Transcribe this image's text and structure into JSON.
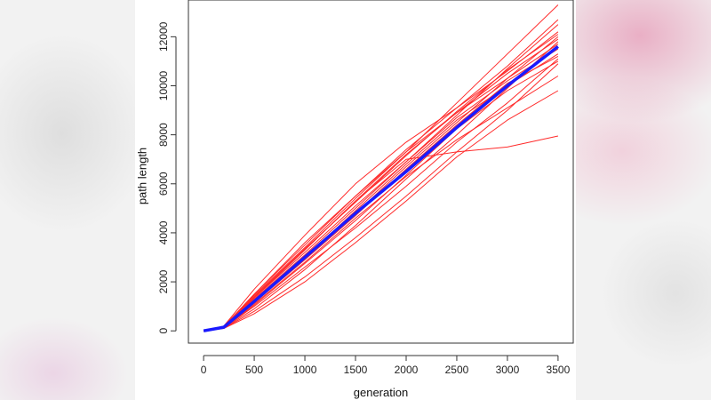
{
  "chart_data": {
    "type": "line",
    "title": "",
    "xlabel": "generation",
    "ylabel": "path length",
    "xlim": [
      -150,
      3650
    ],
    "ylim": [
      -500,
      13500
    ],
    "xticks": [
      0,
      500,
      1000,
      1500,
      2000,
      2500,
      3000,
      3500
    ],
    "yticks": [
      0,
      2000,
      4000,
      6000,
      8000,
      10000,
      12000
    ],
    "grid": false,
    "legend": "none",
    "colors": {
      "runs": "#ff2a2a",
      "mean": "#1a1aff"
    },
    "series": [
      {
        "role": "run",
        "x": [
          0,
          200,
          500,
          1000,
          1500,
          2000,
          2500,
          3000,
          3500
        ],
        "y": [
          0,
          180,
          1500,
          3500,
          5500,
          7400,
          9100,
          10600,
          12200
        ]
      },
      {
        "role": "run",
        "x": [
          0,
          200,
          500,
          1000,
          1500,
          2000,
          2500,
          3000,
          3500
        ],
        "y": [
          0,
          160,
          1400,
          3300,
          5300,
          7200,
          8900,
          10500,
          11900
        ]
      },
      {
        "role": "run",
        "x": [
          0,
          200,
          500,
          1000,
          1500,
          2000,
          2500,
          3000,
          3500
        ],
        "y": [
          0,
          170,
          1300,
          3100,
          5000,
          6900,
          8800,
          10700,
          12500
        ]
      },
      {
        "role": "run",
        "x": [
          0,
          200,
          500,
          1000,
          1500,
          2000,
          2500,
          3000,
          3500
        ],
        "y": [
          0,
          190,
          1450,
          3400,
          5400,
          7300,
          9300,
          11300,
          13300
        ]
      },
      {
        "role": "run",
        "x": [
          0,
          200,
          500,
          1000,
          1500,
          2000,
          2500,
          3000,
          3500
        ],
        "y": [
          0,
          150,
          1200,
          3000,
          4800,
          6700,
          8500,
          10300,
          12000
        ]
      },
      {
        "role": "run",
        "x": [
          0,
          200,
          500,
          1000,
          1500,
          2000,
          2500,
          3000,
          3500
        ],
        "y": [
          0,
          120,
          900,
          2500,
          4300,
          6200,
          8000,
          9900,
          11800
        ]
      },
      {
        "role": "run",
        "x": [
          0,
          200,
          500,
          1000,
          1500,
          2000,
          2500,
          3000,
          3500
        ],
        "y": [
          0,
          110,
          800,
          2200,
          3800,
          5500,
          7300,
          9000,
          10900
        ]
      },
      {
        "role": "run",
        "x": [
          0,
          200,
          500,
          1000,
          1500,
          2000,
          2500,
          3000,
          3500
        ],
        "y": [
          0,
          140,
          1100,
          2800,
          4600,
          6300,
          7800,
          9100,
          10400
        ]
      },
      {
        "role": "run",
        "x": [
          0,
          200,
          500,
          1000,
          1500,
          2000,
          2500,
          3000,
          3500
        ],
        "y": [
          0,
          130,
          1000,
          2600,
          4200,
          5900,
          7700,
          9300,
          11100
        ]
      },
      {
        "role": "run",
        "x": [
          0,
          200,
          500,
          1000,
          1500,
          2000,
          2500,
          3000,
          3500
        ],
        "y": [
          0,
          170,
          1350,
          3300,
          5300,
          7000,
          7300,
          7500,
          7950
        ]
      },
      {
        "role": "run",
        "x": [
          0,
          200,
          500,
          1000,
          1500,
          2000,
          2500,
          3000,
          3500
        ],
        "y": [
          0,
          100,
          700,
          2000,
          3600,
          5300,
          7100,
          8600,
          9800
        ]
      },
      {
        "role": "run",
        "x": [
          0,
          200,
          500,
          1000,
          1500,
          2000,
          2500,
          3000,
          3500
        ],
        "y": [
          0,
          200,
          1700,
          3900,
          6000,
          7700,
          9100,
          10800,
          12700
        ]
      },
      {
        "role": "run",
        "x": [
          0,
          200,
          500,
          1000,
          1500,
          2000,
          2500,
          3000,
          3500
        ],
        "y": [
          0,
          160,
          1350,
          3200,
          5100,
          6900,
          8700,
          10200,
          11500
        ]
      },
      {
        "role": "run",
        "x": [
          0,
          200,
          500,
          1000,
          1500,
          2000,
          2500,
          3000,
          3500
        ],
        "y": [
          0,
          150,
          1250,
          3000,
          4900,
          6800,
          8600,
          10000,
          11300
        ]
      },
      {
        "role": "run",
        "x": [
          0,
          200,
          500,
          1000,
          1500,
          2000,
          2500,
          3000,
          3500
        ],
        "y": [
          0,
          180,
          1500,
          3600,
          5500,
          7300,
          8900,
          10300,
          11700
        ]
      },
      {
        "role": "run",
        "x": [
          0,
          200,
          500,
          1000,
          1500,
          2000,
          2500,
          3000,
          3500
        ],
        "y": [
          0,
          140,
          1150,
          2900,
          4700,
          6600,
          8400,
          10100,
          11200
        ]
      },
      {
        "role": "run",
        "x": [
          0,
          200,
          500,
          1000,
          1500,
          2000,
          2500,
          3000,
          3500
        ],
        "y": [
          0,
          170,
          1400,
          3350,
          5250,
          7150,
          8950,
          10650,
          12100
        ]
      },
      {
        "role": "run",
        "x": [
          0,
          200,
          500,
          1000,
          1500,
          2000,
          2500,
          3000,
          3500
        ],
        "y": [
          0,
          130,
          1050,
          2750,
          4500,
          6350,
          8250,
          9800,
          11000
        ]
      },
      {
        "role": "mean",
        "x": [
          0,
          200,
          300,
          500,
          1000,
          1500,
          2000,
          2500,
          3000,
          3500
        ],
        "y": [
          0,
          150,
          500,
          1200,
          3000,
          4800,
          6500,
          8300,
          10000,
          11600
        ]
      }
    ]
  }
}
